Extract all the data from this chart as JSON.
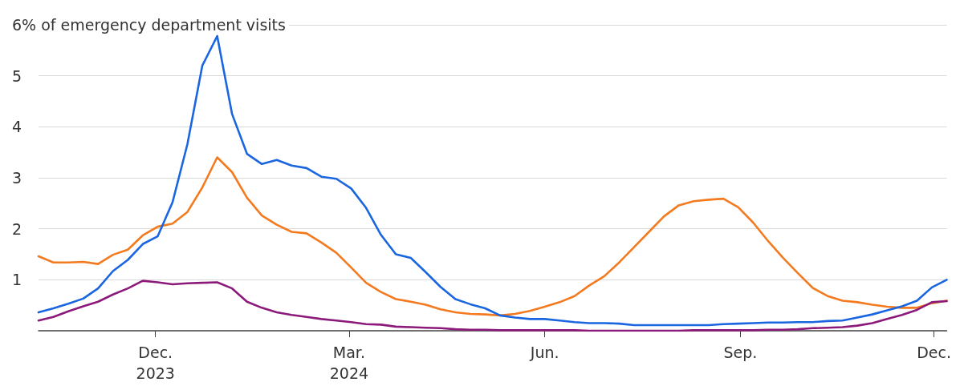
{
  "chart_data": {
    "type": "line",
    "x": [
      "2023-10-07",
      "2023-10-14",
      "2023-10-21",
      "2023-10-28",
      "2023-11-04",
      "2023-11-11",
      "2023-11-18",
      "2023-11-25",
      "2023-12-02",
      "2023-12-09",
      "2023-12-16",
      "2023-12-23",
      "2023-12-30",
      "2024-01-06",
      "2024-01-13",
      "2024-01-20",
      "2024-01-27",
      "2024-02-03",
      "2024-02-10",
      "2024-02-17",
      "2024-02-24",
      "2024-03-02",
      "2024-03-09",
      "2024-03-16",
      "2024-03-23",
      "2024-03-30",
      "2024-04-06",
      "2024-04-13",
      "2024-04-20",
      "2024-04-27",
      "2024-05-04",
      "2024-05-11",
      "2024-05-18",
      "2024-05-25",
      "2024-06-01",
      "2024-06-08",
      "2024-06-15",
      "2024-06-22",
      "2024-06-29",
      "2024-07-06",
      "2024-07-13",
      "2024-07-20",
      "2024-07-27",
      "2024-08-03",
      "2024-08-10",
      "2024-08-17",
      "2024-08-24",
      "2024-08-31",
      "2024-09-07",
      "2024-09-14",
      "2024-09-21",
      "2024-09-28",
      "2024-10-05",
      "2024-10-12",
      "2024-10-19",
      "2024-10-26",
      "2024-11-02",
      "2024-11-09",
      "2024-11-16",
      "2024-11-23",
      "2024-11-30",
      "2024-12-07"
    ],
    "series": [
      {
        "color": "#f47a20",
        "values": [
          1.46,
          1.34,
          1.34,
          1.35,
          1.31,
          1.49,
          1.59,
          1.87,
          2.04,
          2.1,
          2.33,
          2.81,
          3.4,
          3.11,
          2.61,
          2.26,
          2.08,
          1.94,
          1.91,
          1.73,
          1.53,
          1.24,
          0.94,
          0.76,
          0.62,
          0.57,
          0.51,
          0.42,
          0.36,
          0.33,
          0.32,
          0.3,
          0.33,
          0.39,
          0.47,
          0.56,
          0.68,
          0.89,
          1.07,
          1.34,
          1.64,
          1.94,
          2.24,
          2.46,
          2.54,
          2.57,
          2.59,
          2.42,
          2.12,
          1.76,
          1.43,
          1.13,
          0.84,
          0.68,
          0.59,
          0.56,
          0.51,
          0.47,
          0.45,
          0.45,
          0.54,
          0.59
        ]
      },
      {
        "color": "#1a66e0",
        "values": [
          0.36,
          0.44,
          0.53,
          0.63,
          0.83,
          1.17,
          1.39,
          1.7,
          1.85,
          2.52,
          3.66,
          5.2,
          5.78,
          4.25,
          3.47,
          3.27,
          3.35,
          3.24,
          3.19,
          3.02,
          2.98,
          2.79,
          2.41,
          1.88,
          1.5,
          1.43,
          1.15,
          0.86,
          0.62,
          0.52,
          0.44,
          0.3,
          0.26,
          0.23,
          0.23,
          0.2,
          0.17,
          0.15,
          0.15,
          0.14,
          0.11,
          0.11,
          0.11,
          0.11,
          0.11,
          0.11,
          0.13,
          0.14,
          0.15,
          0.16,
          0.16,
          0.17,
          0.17,
          0.19,
          0.2,
          0.26,
          0.32,
          0.4,
          0.48,
          0.59,
          0.85,
          1.0
        ]
      },
      {
        "color": "#8b1a7a",
        "values": [
          0.2,
          0.27,
          0.38,
          0.48,
          0.57,
          0.71,
          0.83,
          0.98,
          0.95,
          0.91,
          0.93,
          0.94,
          0.95,
          0.83,
          0.57,
          0.45,
          0.36,
          0.31,
          0.27,
          0.23,
          0.2,
          0.17,
          0.13,
          0.12,
          0.08,
          0.07,
          0.06,
          0.05,
          0.03,
          0.02,
          0.02,
          0.01,
          0.01,
          0.01,
          0.01,
          0.01,
          0.01,
          0.0,
          0.0,
          0.0,
          0.0,
          0.0,
          0.0,
          0.0,
          0.01,
          0.01,
          0.01,
          0.01,
          0.01,
          0.02,
          0.02,
          0.03,
          0.05,
          0.06,
          0.07,
          0.1,
          0.15,
          0.23,
          0.31,
          0.41,
          0.56,
          0.58
        ]
      }
    ],
    "xlim": [
      "2023-10-07",
      "2024-12-07"
    ],
    "xticks": [
      {
        "value": "2023-12-01",
        "label": "Dec.\n2023"
      },
      {
        "value": "2024-03-01",
        "label": "Mar.\n2024"
      },
      {
        "value": "2024-06-01",
        "label": "Jun."
      },
      {
        "value": "2024-09-01",
        "label": "Sep."
      },
      {
        "value": "2024-12-01",
        "label": "Dec."
      }
    ],
    "ylim": [
      0,
      6
    ],
    "yticks": [
      1,
      2,
      3,
      4,
      5,
      {
        "value": 6,
        "label": "6% of emergency department visits"
      }
    ],
    "grid": "y",
    "marker": "none",
    "line_style": "solid"
  }
}
